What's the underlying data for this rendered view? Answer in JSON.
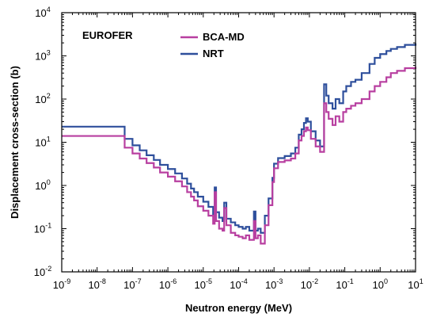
{
  "chart_data": {
    "type": "line",
    "step": true,
    "x_scale": "log",
    "y_scale": "log",
    "xlim": [
      1e-09,
      10
    ],
    "ylim": [
      0.01,
      10000
    ],
    "xlabel": "Neutron energy (MeV)",
    "ylabel": "Displacement cross-section (b)",
    "x_tick_labels": [
      {
        "base": "10",
        "exp": "-9"
      },
      {
        "base": "10",
        "exp": "-8"
      },
      {
        "base": "10",
        "exp": "-7"
      },
      {
        "base": "10",
        "exp": "-6"
      },
      {
        "base": "10",
        "exp": "-5"
      },
      {
        "base": "10",
        "exp": "-4"
      },
      {
        "base": "10",
        "exp": "-3"
      },
      {
        "base": "10",
        "exp": "-2"
      },
      {
        "base": "10",
        "exp": "-1"
      },
      {
        "base": "10",
        "exp": "0"
      },
      {
        "base": "10",
        "exp": "1"
      }
    ],
    "y_tick_labels": [
      {
        "base": "10",
        "exp": "-2"
      },
      {
        "base": "10",
        "exp": "-1"
      },
      {
        "base": "10",
        "exp": "0"
      },
      {
        "base": "10",
        "exp": "1"
      },
      {
        "base": "10",
        "exp": "2"
      },
      {
        "base": "10",
        "exp": "3"
      },
      {
        "base": "10",
        "exp": "4"
      }
    ],
    "annotation": "EUROFER",
    "legend_position": "top-center",
    "grid": false,
    "series": [
      {
        "name": "BCA-MD",
        "color": "#b83fa0",
        "x": [
          1e-09,
          6e-09,
          6e-08,
          1e-07,
          1.6e-07,
          2.5e-07,
          4e-07,
          6e-07,
          1e-06,
          1.6e-06,
          2.5e-06,
          3.5e-06,
          4.5e-06,
          5.5e-06,
          7e-06,
          1e-05,
          1.4e-05,
          1.9e-05,
          2.1e-05,
          2.3e-05,
          2.8e-05,
          3.5e-05,
          3.9e-05,
          4.5e-05,
          6e-05,
          8e-05,
          0.0001,
          0.00013,
          0.00016,
          0.0002,
          0.00027,
          0.0003,
          0.00035,
          0.00042,
          0.00055,
          0.0007,
          0.0009,
          0.001,
          0.0013,
          0.002,
          0.003,
          0.004,
          0.005,
          0.006,
          0.007,
          0.008,
          0.009,
          0.011,
          0.015,
          0.02,
          0.026,
          0.03,
          0.035,
          0.045,
          0.055,
          0.07,
          0.09,
          0.11,
          0.15,
          0.2,
          0.3,
          0.5,
          0.7,
          1,
          1.5,
          2,
          3,
          5,
          10
        ],
        "y": [
          14,
          14,
          7.5,
          5.5,
          4.2,
          3.3,
          2.6,
          2.0,
          1.6,
          1.25,
          0.95,
          0.7,
          0.55,
          0.45,
          0.33,
          0.26,
          0.2,
          0.13,
          0.7,
          0.15,
          0.1,
          0.09,
          0.3,
          0.12,
          0.08,
          0.07,
          0.065,
          0.06,
          0.07,
          0.055,
          0.15,
          0.06,
          0.07,
          0.045,
          0.12,
          0.35,
          1.2,
          2.5,
          3.5,
          3.8,
          4.2,
          5.5,
          11,
          14,
          18,
          22,
          19,
          12,
          8,
          6,
          80,
          50,
          35,
          25,
          40,
          30,
          50,
          60,
          70,
          80,
          100,
          150,
          200,
          250,
          320,
          400,
          450,
          520,
          560
        ]
      },
      {
        "name": "NRT",
        "color": "#2e4f9c",
        "x": [
          1e-09,
          6e-09,
          6e-08,
          1e-07,
          1.6e-07,
          2.5e-07,
          4e-07,
          6e-07,
          1e-06,
          1.6e-06,
          2.5e-06,
          3.5e-06,
          4.5e-06,
          5.5e-06,
          7e-06,
          1e-05,
          1.4e-05,
          1.9e-05,
          2.1e-05,
          2.3e-05,
          2.8e-05,
          3.5e-05,
          3.9e-05,
          4.5e-05,
          6e-05,
          8e-05,
          0.0001,
          0.00013,
          0.00016,
          0.0002,
          0.00027,
          0.0003,
          0.00035,
          0.00042,
          0.00055,
          0.0007,
          0.0009,
          0.001,
          0.0013,
          0.002,
          0.003,
          0.004,
          0.005,
          0.006,
          0.007,
          0.008,
          0.009,
          0.011,
          0.015,
          0.02,
          0.026,
          0.03,
          0.035,
          0.045,
          0.055,
          0.07,
          0.09,
          0.11,
          0.15,
          0.2,
          0.3,
          0.5,
          0.7,
          1,
          1.5,
          2,
          3,
          5,
          10
        ],
        "y": [
          23,
          23,
          12,
          8.5,
          6.5,
          5.0,
          3.9,
          3.0,
          2.4,
          1.9,
          1.45,
          1.1,
          0.85,
          0.7,
          0.55,
          0.42,
          0.32,
          0.22,
          0.9,
          0.24,
          0.18,
          0.15,
          0.4,
          0.17,
          0.14,
          0.12,
          0.11,
          0.1,
          0.11,
          0.09,
          0.25,
          0.09,
          0.1,
          0.08,
          0.2,
          0.5,
          1.5,
          3.2,
          4.3,
          4.8,
          5.5,
          7.5,
          15,
          20,
          28,
          36,
          30,
          18,
          11,
          8,
          220,
          120,
          80,
          60,
          100,
          80,
          150,
          200,
          250,
          280,
          400,
          650,
          900,
          1100,
          1300,
          1450,
          1600,
          1800,
          1950
        ]
      }
    ]
  }
}
